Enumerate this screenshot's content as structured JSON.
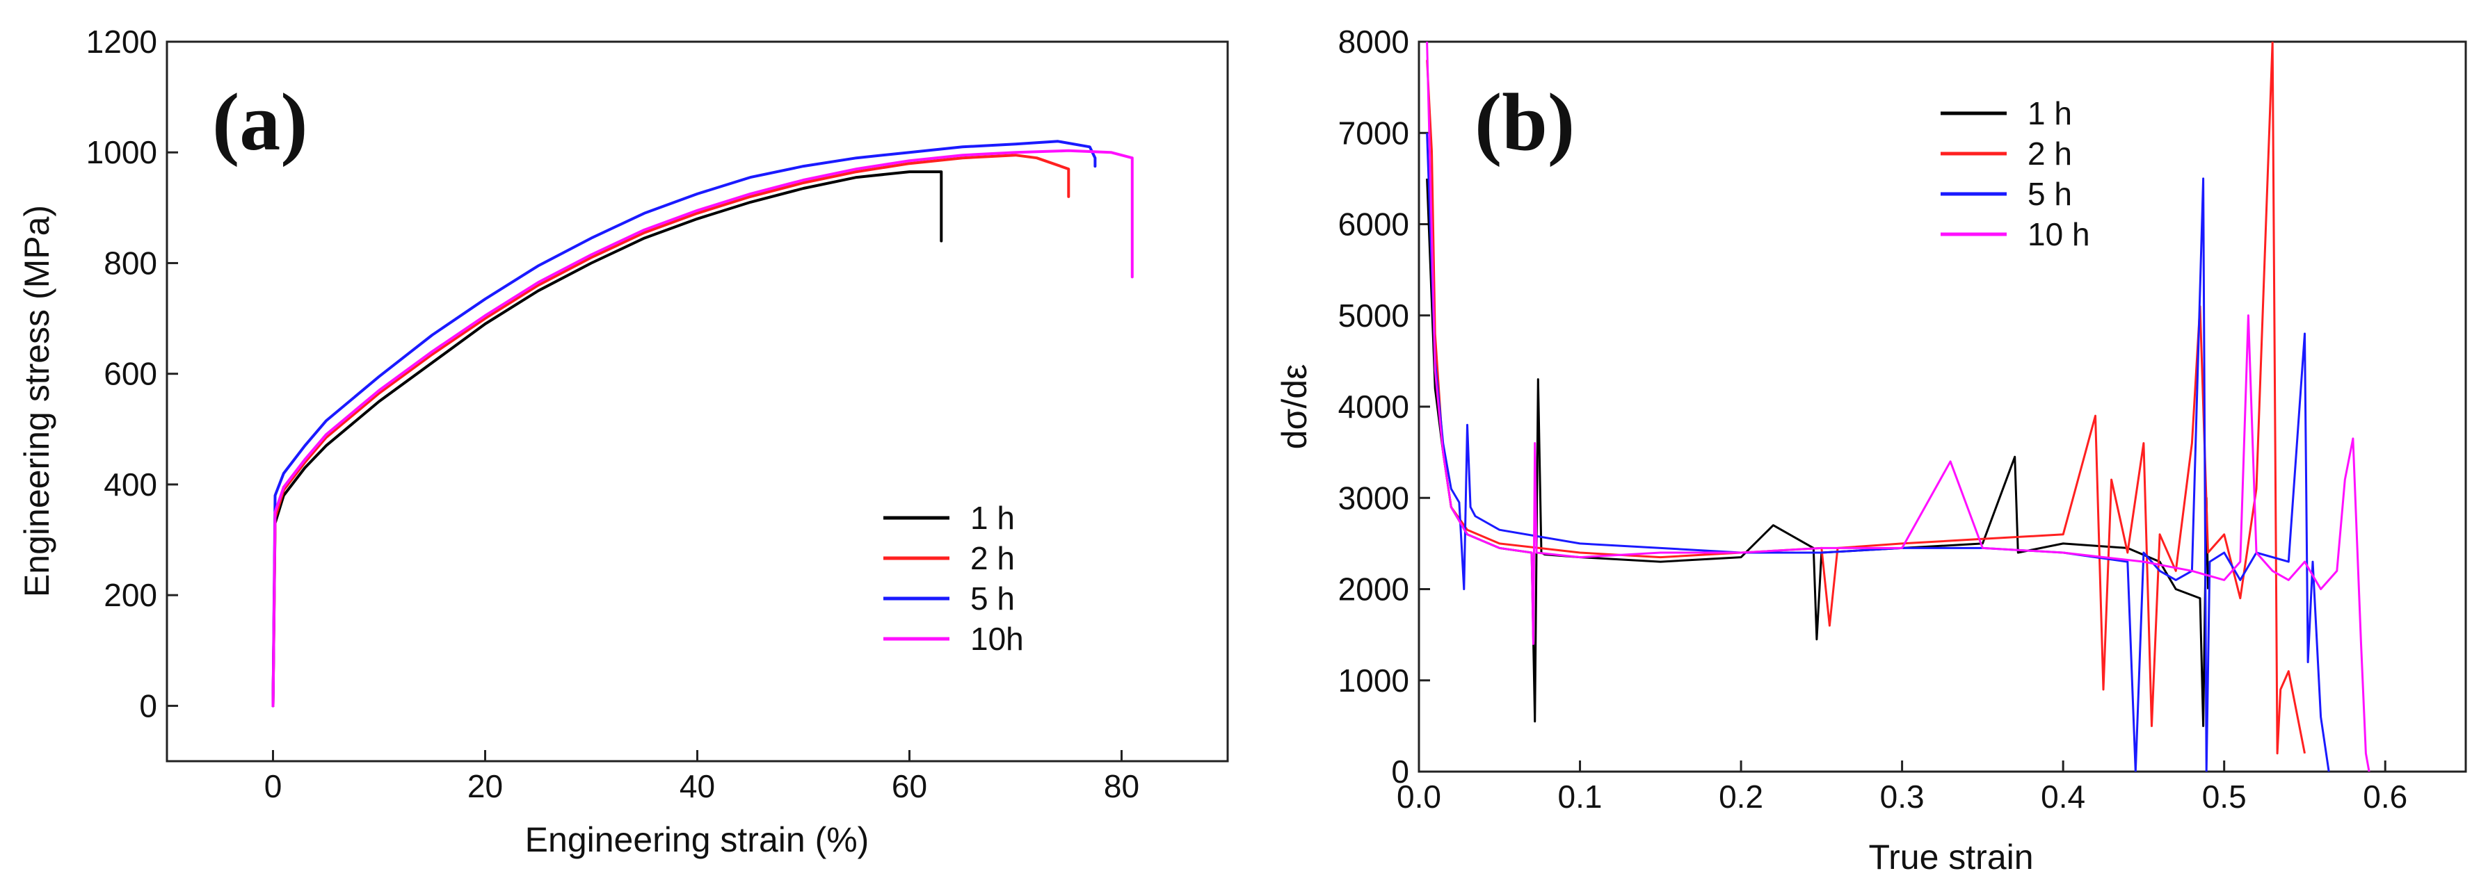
{
  "chart_data": [
    {
      "panel": "(a)",
      "type": "line",
      "xlabel": "Engineering strain (%)",
      "ylabel": "Engineering stress (MPa)",
      "xlim": [
        -10,
        90
      ],
      "ylim": [
        -100,
        1200
      ],
      "xticks": [
        0,
        20,
        40,
        60,
        80
      ],
      "yticks": [
        0,
        200,
        400,
        600,
        800,
        1000,
        1200
      ],
      "legend_position": "bottom-right",
      "series": [
        {
          "name": "1 h",
          "color": "#000000",
          "x": [
            0,
            0.2,
            1,
            3,
            5,
            10,
            15,
            20,
            25,
            30,
            35,
            40,
            45,
            50,
            55,
            60,
            63,
            63
          ],
          "y": [
            0,
            330,
            380,
            430,
            470,
            550,
            620,
            690,
            750,
            800,
            845,
            880,
            910,
            935,
            955,
            965,
            965,
            840
          ]
        },
        {
          "name": "2 h",
          "color": "#ff2020",
          "x": [
            0,
            0.2,
            1,
            3,
            5,
            10,
            15,
            20,
            25,
            30,
            35,
            40,
            45,
            50,
            55,
            60,
            65,
            70,
            72,
            75,
            75
          ],
          "y": [
            0,
            340,
            390,
            440,
            485,
            565,
            635,
            700,
            760,
            810,
            855,
            890,
            920,
            945,
            965,
            980,
            990,
            995,
            990,
            970,
            920
          ]
        },
        {
          "name": "5 h",
          "color": "#1a1aff",
          "x": [
            0,
            0.2,
            1,
            3,
            5,
            10,
            15,
            20,
            25,
            30,
            35,
            40,
            45,
            50,
            55,
            60,
            65,
            70,
            74,
            77,
            77.5,
            77.5
          ],
          "y": [
            0,
            380,
            420,
            470,
            515,
            595,
            670,
            735,
            795,
            845,
            890,
            925,
            955,
            975,
            990,
            1000,
            1010,
            1015,
            1020,
            1010,
            990,
            975
          ]
        },
        {
          "name": "10h",
          "color": "#ff10ff",
          "x": [
            0,
            0.2,
            1,
            3,
            5,
            10,
            15,
            20,
            25,
            30,
            35,
            40,
            45,
            50,
            55,
            60,
            65,
            70,
            75,
            79,
            81,
            81
          ],
          "y": [
            0,
            350,
            395,
            445,
            490,
            570,
            640,
            705,
            765,
            815,
            860,
            895,
            925,
            950,
            970,
            985,
            995,
            1000,
            1003,
            1000,
            990,
            775
          ]
        }
      ]
    },
    {
      "panel": "(b)",
      "type": "line",
      "xlabel": "True strain",
      "ylabel": "dσ/dε",
      "xlim": [
        0,
        0.65
      ],
      "ylim": [
        0,
        8000
      ],
      "xticks": [
        "0.0",
        "0.1",
        "0.2",
        "0.3",
        "0.4",
        "0.5",
        "0.6"
      ],
      "yticks": [
        0,
        1000,
        2000,
        3000,
        4000,
        5000,
        6000,
        7000,
        8000
      ],
      "legend_position": "top-center",
      "series": [
        {
          "name": "1 h",
          "color": "#000000",
          "x": [
            0.005,
            0.01,
            0.015,
            0.02,
            0.03,
            0.05,
            0.07,
            0.072,
            0.074,
            0.076,
            0.078,
            0.1,
            0.15,
            0.2,
            0.22,
            0.245,
            0.247,
            0.25,
            0.3,
            0.35,
            0.37,
            0.372,
            0.4,
            0.44,
            0.46,
            0.47,
            0.485,
            0.487,
            0.489,
            0.49
          ],
          "y": [
            6500,
            4200,
            3500,
            2900,
            2600,
            2450,
            2400,
            550,
            4300,
            2400,
            2380,
            2350,
            2300,
            2350,
            2700,
            2450,
            1450,
            2400,
            2450,
            2500,
            3450,
            2400,
            2500,
            2450,
            2300,
            2000,
            1900,
            500,
            3000,
            2000
          ]
        },
        {
          "name": "2 h",
          "color": "#ff2020",
          "x": [
            0.005,
            0.008,
            0.01,
            0.015,
            0.02,
            0.03,
            0.05,
            0.1,
            0.15,
            0.2,
            0.25,
            0.255,
            0.26,
            0.3,
            0.35,
            0.4,
            0.42,
            0.425,
            0.43,
            0.44,
            0.45,
            0.455,
            0.46,
            0.47,
            0.48,
            0.485,
            0.49,
            0.5,
            0.51,
            0.52,
            0.53,
            0.533,
            0.535,
            0.54,
            0.55
          ],
          "y": [
            7800,
            6800,
            4800,
            3500,
            2900,
            2650,
            2500,
            2400,
            2350,
            2400,
            2450,
            1600,
            2450,
            2500,
            2550,
            2600,
            3900,
            900,
            3200,
            2400,
            3600,
            500,
            2600,
            2200,
            3600,
            5100,
            2400,
            2600,
            1900,
            3100,
            8000,
            200,
            900,
            1100,
            200
          ]
        },
        {
          "name": "5 h",
          "color": "#1a1aff",
          "x": [
            0.005,
            0.01,
            0.015,
            0.02,
            0.025,
            0.028,
            0.03,
            0.032,
            0.035,
            0.05,
            0.1,
            0.15,
            0.2,
            0.25,
            0.3,
            0.35,
            0.4,
            0.44,
            0.445,
            0.45,
            0.46,
            0.47,
            0.48,
            0.487,
            0.489,
            0.491,
            0.5,
            0.51,
            0.52,
            0.54,
            0.55,
            0.552,
            0.555,
            0.56,
            0.565
          ],
          "y": [
            7000,
            4500,
            3600,
            3100,
            2950,
            2000,
            3800,
            2900,
            2800,
            2650,
            2500,
            2450,
            2400,
            2400,
            2450,
            2450,
            2400,
            2300,
            0,
            2400,
            2200,
            2100,
            2200,
            6500,
            0,
            2300,
            2400,
            2100,
            2400,
            2300,
            4800,
            1200,
            2300,
            600,
            0
          ]
        },
        {
          "name": "10 h",
          "color": "#ff10ff",
          "x": [
            0.005,
            0.01,
            0.015,
            0.02,
            0.03,
            0.05,
            0.07,
            0.071,
            0.072,
            0.073,
            0.1,
            0.15,
            0.2,
            0.25,
            0.3,
            0.33,
            0.35,
            0.4,
            0.45,
            0.48,
            0.5,
            0.51,
            0.515,
            0.52,
            0.53,
            0.54,
            0.55,
            0.56,
            0.57,
            0.575,
            0.58,
            0.585,
            0.588,
            0.59
          ],
          "y": [
            8000,
            4400,
            3500,
            2900,
            2600,
            2450,
            2400,
            1400,
            3600,
            2400,
            2350,
            2400,
            2400,
            2450,
            2450,
            3400,
            2450,
            2400,
            2300,
            2200,
            2100,
            2300,
            5000,
            2400,
            2200,
            2100,
            2300,
            2000,
            2200,
            3200,
            3650,
            1400,
            200,
            0
          ]
        }
      ]
    }
  ]
}
